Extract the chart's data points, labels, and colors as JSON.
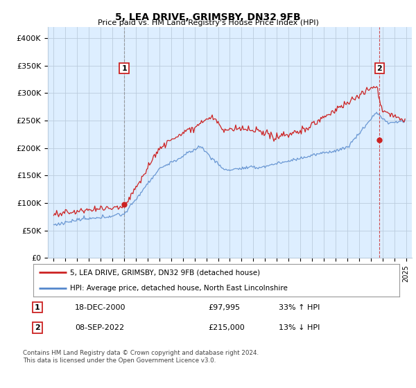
{
  "title": "5, LEA DRIVE, GRIMSBY, DN32 9FB",
  "subtitle": "Price paid vs. HM Land Registry's House Price Index (HPI)",
  "ylim": [
    0,
    420000
  ],
  "yticks": [
    0,
    50000,
    100000,
    150000,
    200000,
    250000,
    300000,
    350000,
    400000
  ],
  "ytick_labels": [
    "£0",
    "£50K",
    "£100K",
    "£150K",
    "£200K",
    "£250K",
    "£300K",
    "£350K",
    "£400K"
  ],
  "background_color": "#ffffff",
  "chart_bg_color": "#ddeeff",
  "grid_color": "#bbccdd",
  "hpi_color": "#5588cc",
  "price_color": "#cc2222",
  "sale1_x": 2001.0,
  "sale1_price": 97995,
  "sale2_x": 2022.75,
  "sale2_price": 215000,
  "legend_line1": "5, LEA DRIVE, GRIMSBY, DN32 9FB (detached house)",
  "legend_line2": "HPI: Average price, detached house, North East Lincolnshire",
  "table_row1": [
    "1",
    "18-DEC-2000",
    "£97,995",
    "33% ↑ HPI"
  ],
  "table_row2": [
    "2",
    "08-SEP-2022",
    "£215,000",
    "13% ↓ HPI"
  ],
  "footer": "Contains HM Land Registry data © Crown copyright and database right 2024.\nThis data is licensed under the Open Government Licence v3.0.",
  "xlim_start": 1994.5,
  "xlim_end": 2025.5
}
